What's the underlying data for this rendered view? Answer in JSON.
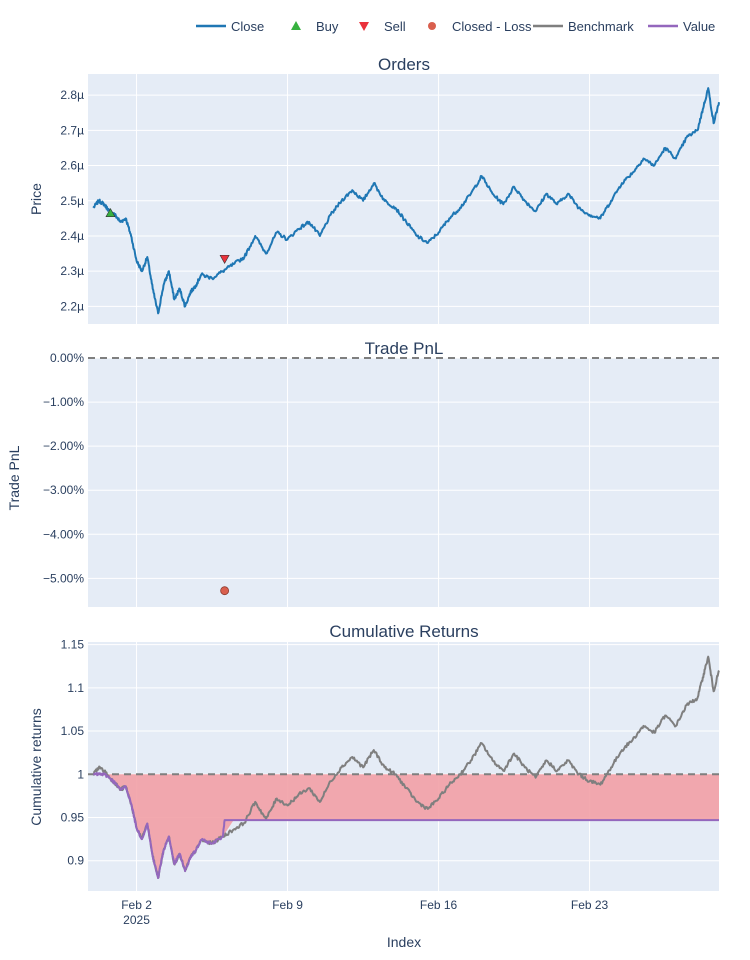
{
  "chart_data": [
    {
      "type": "line",
      "title": "Orders",
      "ylabel": "Price",
      "xlabel": "",
      "x_range": [
        "2025-01-30T18:00",
        "2025-03-01T00:00"
      ],
      "ylim": [
        2.15,
        2.86
      ],
      "y_ticks": [
        2.2,
        2.3,
        2.4,
        2.5,
        2.6,
        2.7,
        2.8
      ],
      "y_tick_labels": [
        "2.2µ",
        "2.3µ",
        "2.4µ",
        "2.5µ",
        "2.6µ",
        "2.7µ",
        "2.8µ"
      ],
      "grid": true,
      "series": [
        {
          "name": "Close",
          "color": "#1f77b4",
          "x": [
            "2025-01-31T00:00",
            "2025-01-31T06:00",
            "2025-01-31T12:00",
            "2025-01-31T18:00",
            "2025-02-01T00:00",
            "2025-02-01T06:00",
            "2025-02-01T12:00",
            "2025-02-01T18:00",
            "2025-02-02T00:00",
            "2025-02-02T06:00",
            "2025-02-02T12:00",
            "2025-02-02T18:00",
            "2025-02-03T00:00",
            "2025-02-03T06:00",
            "2025-02-03T12:00",
            "2025-02-03T18:00",
            "2025-02-04T00:00",
            "2025-02-04T06:00",
            "2025-02-04T12:00",
            "2025-02-04T18:00",
            "2025-02-05T00:00",
            "2025-02-05T12:00",
            "2025-02-06T00:00",
            "2025-02-06T12:00",
            "2025-02-07T00:00",
            "2025-02-07T12:00",
            "2025-02-08T00:00",
            "2025-02-08T12:00",
            "2025-02-09T00:00",
            "2025-02-09T12:00",
            "2025-02-10T00:00",
            "2025-02-10T12:00",
            "2025-02-11T00:00",
            "2025-02-11T12:00",
            "2025-02-12T00:00",
            "2025-02-12T12:00",
            "2025-02-13T00:00",
            "2025-02-13T12:00",
            "2025-02-14T00:00",
            "2025-02-14T12:00",
            "2025-02-15T00:00",
            "2025-02-15T12:00",
            "2025-02-16T00:00",
            "2025-02-16T12:00",
            "2025-02-17T00:00",
            "2025-02-17T12:00",
            "2025-02-18T00:00",
            "2025-02-18T12:00",
            "2025-02-19T00:00",
            "2025-02-19T12:00",
            "2025-02-20T00:00",
            "2025-02-20T12:00",
            "2025-02-21T00:00",
            "2025-02-21T12:00",
            "2025-02-22T00:00",
            "2025-02-22T12:00",
            "2025-02-23T00:00",
            "2025-02-23T12:00",
            "2025-02-24T00:00",
            "2025-02-24T12:00",
            "2025-02-25T00:00",
            "2025-02-25T12:00",
            "2025-02-26T00:00",
            "2025-02-26T12:00",
            "2025-02-27T00:00",
            "2025-02-27T12:00",
            "2025-02-28T00:00",
            "2025-02-28T06:00",
            "2025-02-28T12:00",
            "2025-02-28T18:00",
            "2025-03-01T00:00"
          ],
          "y": [
            2.48,
            2.5,
            2.49,
            2.47,
            2.46,
            2.44,
            2.45,
            2.4,
            2.33,
            2.3,
            2.34,
            2.25,
            2.18,
            2.26,
            2.3,
            2.22,
            2.25,
            2.2,
            2.24,
            2.26,
            2.29,
            2.28,
            2.3,
            2.32,
            2.34,
            2.4,
            2.35,
            2.41,
            2.39,
            2.42,
            2.44,
            2.4,
            2.46,
            2.5,
            2.53,
            2.5,
            2.55,
            2.5,
            2.48,
            2.44,
            2.4,
            2.38,
            2.41,
            2.45,
            2.48,
            2.52,
            2.57,
            2.52,
            2.49,
            2.54,
            2.5,
            2.47,
            2.52,
            2.49,
            2.52,
            2.48,
            2.46,
            2.45,
            2.5,
            2.55,
            2.58,
            2.62,
            2.6,
            2.65,
            2.62,
            2.68,
            2.7,
            2.76,
            2.82,
            2.72,
            2.78
          ]
        },
        {
          "name": "Buy",
          "color": "#37b13f",
          "marker": "triangle-up",
          "x": [
            "2025-01-31T19:00"
          ],
          "y": [
            2.465
          ]
        },
        {
          "name": "Sell",
          "color": "#ea323c",
          "marker": "triangle-down",
          "x": [
            "2025-02-06T02:00"
          ],
          "y": [
            2.335
          ]
        }
      ]
    },
    {
      "type": "scatter",
      "title": "Trade PnL",
      "ylabel": "Trade PnL",
      "xlabel": "",
      "x_range": [
        "2025-01-30T18:00",
        "2025-03-01T00:00"
      ],
      "ylim": [
        -0.0565,
        0.0
      ],
      "y_ticks": [
        0.0,
        -0.01,
        -0.02,
        -0.03,
        -0.04,
        -0.05
      ],
      "y_tick_labels": [
        "0.00%",
        "−1.00%",
        "−2.00%",
        "−3.00%",
        "−4.00%",
        "−5.00%"
      ],
      "reference_line": 0.0,
      "grid": true,
      "series": [
        {
          "name": "Closed - Loss",
          "color": "#d95f4e",
          "marker": "circle",
          "x": [
            "2025-02-06T02:00"
          ],
          "y": [
            -0.0528
          ]
        }
      ]
    },
    {
      "type": "area",
      "title": "Cumulative Returns",
      "ylabel": "Cumulative returns",
      "xlabel": "Index",
      "x_range": [
        "2025-01-30T18:00",
        "2025-03-01T00:00"
      ],
      "ylim": [
        0.865,
        1.153
      ],
      "y_ticks": [
        0.9,
        0.95,
        1,
        1.05,
        1.1,
        1.15
      ],
      "y_tick_labels": [
        "0.9",
        "0.95",
        "1",
        "1.05",
        "1.1",
        "1.15"
      ],
      "x_ticks": [
        "2025-02-02",
        "2025-02-09",
        "2025-02-16",
        "2025-02-23"
      ],
      "x_tick_labels": [
        "Feb 2",
        "Feb 9",
        "Feb 16",
        "Feb 23"
      ],
      "x_tick_sublabel": "2025",
      "reference_line": 1,
      "grid": true,
      "fill_color": "#f2a0a6",
      "series": [
        {
          "name": "Benchmark",
          "color": "#7f7f7f",
          "x": [
            "2025-01-31T00:00",
            "2025-01-31T06:00",
            "2025-01-31T12:00",
            "2025-01-31T18:00",
            "2025-02-01T00:00",
            "2025-02-01T06:00",
            "2025-02-01T12:00",
            "2025-02-01T18:00",
            "2025-02-02T00:00",
            "2025-02-02T06:00",
            "2025-02-02T12:00",
            "2025-02-02T18:00",
            "2025-02-03T00:00",
            "2025-02-03T06:00",
            "2025-02-03T12:00",
            "2025-02-03T18:00",
            "2025-02-04T00:00",
            "2025-02-04T06:00",
            "2025-02-04T12:00",
            "2025-02-04T18:00",
            "2025-02-05T00:00",
            "2025-02-05T12:00",
            "2025-02-06T00:00",
            "2025-02-06T12:00",
            "2025-02-07T00:00",
            "2025-02-07T12:00",
            "2025-02-08T00:00",
            "2025-02-08T12:00",
            "2025-02-09T00:00",
            "2025-02-09T12:00",
            "2025-02-10T00:00",
            "2025-02-10T12:00",
            "2025-02-11T00:00",
            "2025-02-11T12:00",
            "2025-02-12T00:00",
            "2025-02-12T12:00",
            "2025-02-13T00:00",
            "2025-02-13T12:00",
            "2025-02-14T00:00",
            "2025-02-14T12:00",
            "2025-02-15T00:00",
            "2025-02-15T12:00",
            "2025-02-16T00:00",
            "2025-02-16T12:00",
            "2025-02-17T00:00",
            "2025-02-17T12:00",
            "2025-02-18T00:00",
            "2025-02-18T12:00",
            "2025-02-19T00:00",
            "2025-02-19T12:00",
            "2025-02-20T00:00",
            "2025-02-20T12:00",
            "2025-02-21T00:00",
            "2025-02-21T12:00",
            "2025-02-22T00:00",
            "2025-02-22T12:00",
            "2025-02-23T00:00",
            "2025-02-23T12:00",
            "2025-02-24T00:00",
            "2025-02-24T12:00",
            "2025-02-25T00:00",
            "2025-02-25T12:00",
            "2025-02-26T00:00",
            "2025-02-26T12:00",
            "2025-02-27T00:00",
            "2025-02-27T12:00",
            "2025-02-28T00:00",
            "2025-02-28T06:00",
            "2025-02-28T12:00",
            "2025-02-28T18:00",
            "2025-03-01T00:00"
          ],
          "y": [
            1.0,
            1.008,
            1.004,
            0.996,
            0.99,
            0.982,
            0.986,
            0.966,
            0.938,
            0.925,
            0.943,
            0.905,
            0.88,
            0.912,
            0.928,
            0.896,
            0.908,
            0.888,
            0.904,
            0.912,
            0.924,
            0.92,
            0.928,
            0.936,
            0.944,
            0.968,
            0.948,
            0.972,
            0.964,
            0.976,
            0.984,
            0.968,
            0.992,
            1.008,
            1.02,
            1.008,
            1.028,
            1.008,
            1.0,
            0.984,
            0.968,
            0.96,
            0.972,
            0.988,
            1.0,
            1.016,
            1.036,
            1.016,
            1.004,
            1.024,
            1.008,
            0.996,
            1.016,
            1.004,
            1.016,
            1.0,
            0.992,
            0.988,
            1.008,
            1.028,
            1.04,
            1.056,
            1.048,
            1.068,
            1.056,
            1.08,
            1.088,
            1.112,
            1.136,
            1.096,
            1.12
          ]
        },
        {
          "name": "Value",
          "color": "#9467bd",
          "x": [
            "2025-01-31T00:00",
            "2025-01-31T06:00",
            "2025-01-31T12:00",
            "2025-01-31T18:00",
            "2025-02-01T00:00",
            "2025-02-01T06:00",
            "2025-02-01T12:00",
            "2025-02-01T18:00",
            "2025-02-02T00:00",
            "2025-02-02T06:00",
            "2025-02-02T12:00",
            "2025-02-02T18:00",
            "2025-02-03T00:00",
            "2025-02-03T06:00",
            "2025-02-03T12:00",
            "2025-02-03T18:00",
            "2025-02-04T00:00",
            "2025-02-04T06:00",
            "2025-02-04T12:00",
            "2025-02-04T18:00",
            "2025-02-05T00:00",
            "2025-02-05T12:00",
            "2025-02-06T00:00",
            "2025-02-06T02:00",
            "2025-03-01T00:00"
          ],
          "y": [
            1.0,
            1.0,
            1.0,
            0.996,
            0.99,
            0.982,
            0.986,
            0.966,
            0.938,
            0.925,
            0.943,
            0.905,
            0.88,
            0.912,
            0.928,
            0.896,
            0.908,
            0.888,
            0.904,
            0.912,
            0.924,
            0.92,
            0.928,
            0.947,
            0.947
          ]
        }
      ]
    }
  ],
  "legend": {
    "placement": "top-right",
    "items": [
      {
        "label": "Close",
        "type": "line",
        "color": "#1f77b4"
      },
      {
        "label": "Buy",
        "type": "triangle-up",
        "color": "#37b13f"
      },
      {
        "label": "Sell",
        "type": "triangle-down",
        "color": "#ea323c"
      },
      {
        "label": "Closed - Loss",
        "type": "circle",
        "color": "#d95f4e"
      },
      {
        "label": "Benchmark",
        "type": "line",
        "color": "#7f7f7f"
      },
      {
        "label": "Value",
        "type": "line",
        "color": "#9467bd"
      }
    ]
  },
  "colors": {
    "plot_bg": "#e5ecf6",
    "grid": "#ffffff",
    "text": "#2a3f5f",
    "reference": "#7f7f7f"
  }
}
